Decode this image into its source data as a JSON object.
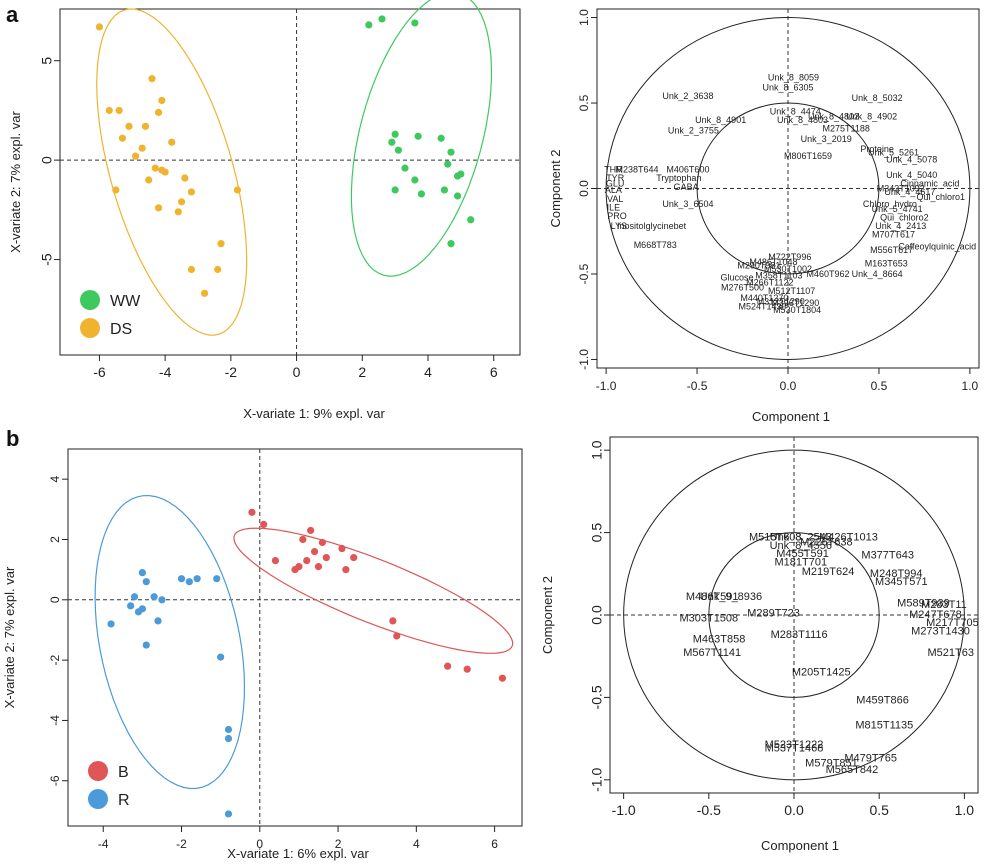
{
  "panels": {
    "a": "a",
    "b": "b"
  },
  "chart_data": [
    {
      "id": "a-scores",
      "type": "scatter",
      "title": "",
      "xlabel": "X-variate 1: 9% expl. var",
      "ylabel": "X-variate 2: 7% expl. var",
      "xlim": [
        -7.2,
        6.8
      ],
      "ylim": [
        -9.8,
        7.6
      ],
      "xticks": [
        "-6",
        "-4",
        "-2",
        "0",
        "2",
        "4",
        "6"
      ],
      "xtick_values": [
        -6,
        -4,
        -2,
        0,
        2,
        4,
        6
      ],
      "yticks": [
        "-5",
        "0",
        "5"
      ],
      "ytick_values": [
        -5,
        0,
        5
      ],
      "legend_placement": "bottom-left",
      "grid": false,
      "series": [
        {
          "name": "WW",
          "color": "#3ec95f",
          "ellipse": {
            "cx": 3.8,
            "cy": 1.3,
            "rx": 1.9,
            "ry": 7.2,
            "angle_deg": -8
          },
          "points": [
            [
              2.2,
              6.8
            ],
            [
              2.6,
              7.1
            ],
            [
              3.6,
              6.9
            ],
            [
              3.0,
              1.3
            ],
            [
              2.9,
              0.9
            ],
            [
              3.1,
              0.5
            ],
            [
              3.7,
              1.2
            ],
            [
              4.4,
              1.1
            ],
            [
              4.7,
              0.4
            ],
            [
              3.3,
              -0.4
            ],
            [
              3.6,
              -1.0
            ],
            [
              3.8,
              -1.7
            ],
            [
              3.0,
              -1.5
            ],
            [
              4.6,
              -0.2
            ],
            [
              4.9,
              -0.8
            ],
            [
              5.0,
              -0.7
            ],
            [
              4.5,
              -1.5
            ],
            [
              4.9,
              -1.8
            ],
            [
              5.3,
              -3.0
            ],
            [
              4.7,
              -4.2
            ]
          ]
        },
        {
          "name": "DS",
          "color": "#f0b32e",
          "ellipse": {
            "cx": -3.8,
            "cy": -0.6,
            "rx": 1.9,
            "ry": 8.3,
            "angle_deg": 9
          },
          "points": [
            [
              -6.0,
              6.7
            ],
            [
              -4.4,
              4.1
            ],
            [
              -4.1,
              3.0
            ],
            [
              -5.7,
              2.5
            ],
            [
              -5.4,
              2.5
            ],
            [
              -4.2,
              2.4
            ],
            [
              -5.1,
              1.7
            ],
            [
              -4.6,
              1.7
            ],
            [
              -5.3,
              1.1
            ],
            [
              -4.7,
              0.6
            ],
            [
              -3.8,
              0.9
            ],
            [
              -4.9,
              0.2
            ],
            [
              -4.3,
              -0.4
            ],
            [
              -4.1,
              -0.5
            ],
            [
              -4.0,
              -0.6
            ],
            [
              -3.4,
              -0.9
            ],
            [
              -4.5,
              -1.0
            ],
            [
              -5.5,
              -1.5
            ],
            [
              -3.2,
              -1.6
            ],
            [
              -3.5,
              -2.1
            ],
            [
              -1.8,
              -1.5
            ],
            [
              -4.2,
              -2.4
            ],
            [
              -3.6,
              -2.6
            ],
            [
              -2.3,
              -4.2
            ],
            [
              -3.2,
              -5.5
            ],
            [
              -2.4,
              -5.5
            ],
            [
              -2.8,
              -6.7
            ]
          ]
        }
      ]
    },
    {
      "id": "a-loadings",
      "type": "scatter",
      "title": "",
      "xlabel": "Component 1",
      "ylabel": "Component 2",
      "xlim": [
        -1.05,
        1.05
      ],
      "ylim": [
        -1.05,
        1.05
      ],
      "xticks": [
        "-1.0",
        "-0.5",
        "0.0",
        "0.5",
        "1.0"
      ],
      "xtick_values": [
        -1,
        -0.5,
        0,
        0.5,
        1
      ],
      "yticks": [
        "-1.0",
        "-0.5",
        "0.0",
        "0.5",
        "1.0"
      ],
      "ytick_values": [
        -1,
        -0.5,
        0,
        0.5,
        1
      ],
      "circles": [
        1.0,
        0.5
      ],
      "labels": [
        {
          "t": "Unk_8_8059",
          "x": 0.03,
          "y": 0.65
        },
        {
          "t": "Unk_8_6305",
          "x": 0.0,
          "y": 0.59
        },
        {
          "t": "Unk_2_3638",
          "x": -0.55,
          "y": 0.54
        },
        {
          "t": "Unk_8_5032",
          "x": 0.49,
          "y": 0.53
        },
        {
          "t": "Unk_8_4474",
          "x": 0.04,
          "y": 0.45
        },
        {
          "t": "Unk_8_4802",
          "x": 0.25,
          "y": 0.42
        },
        {
          "t": "Unk_8_4902",
          "x": 0.46,
          "y": 0.42
        },
        {
          "t": "Unk_8_4901",
          "x": -0.37,
          "y": 0.4
        },
        {
          "t": "Unk_8_4803",
          "x": 0.08,
          "y": 0.4
        },
        {
          "t": "M275T1188",
          "x": 0.32,
          "y": 0.35
        },
        {
          "t": "Unk_2_3755",
          "x": -0.52,
          "y": 0.34
        },
        {
          "t": "Unk_3_2019",
          "x": 0.21,
          "y": 0.29
        },
        {
          "t": "M806T1659",
          "x": 0.11,
          "y": 0.19
        },
        {
          "t": "Proteine",
          "x": 0.49,
          "y": 0.23
        },
        {
          "t": "Unk_5_5261",
          "x": 0.58,
          "y": 0.21
        },
        {
          "t": "Unk_4_5078",
          "x": 0.68,
          "y": 0.17
        },
        {
          "t": "M238T644",
          "x": -0.83,
          "y": 0.11
        },
        {
          "t": "M406T600",
          "x": -0.55,
          "y": 0.11
        },
        {
          "t": "THR",
          "x": -0.96,
          "y": 0.11
        },
        {
          "t": "TYR",
          "x": -0.95,
          "y": 0.06
        },
        {
          "t": "Tryptophan",
          "x": -0.6,
          "y": 0.06
        },
        {
          "t": "GABA",
          "x": -0.56,
          "y": 0.01
        },
        {
          "t": "GLU",
          "x": -0.95,
          "y": 0.03
        },
        {
          "t": "ALA",
          "x": -0.96,
          "y": -0.01
        },
        {
          "t": "VAL",
          "x": -0.95,
          "y": -0.06
        },
        {
          "t": "ILE",
          "x": -0.96,
          "y": -0.11
        },
        {
          "t": "Unk_3_6504",
          "x": -0.55,
          "y": -0.09
        },
        {
          "t": "PRO",
          "x": -0.94,
          "y": -0.16
        },
        {
          "t": "LYS",
          "x": -0.93,
          "y": -0.22
        },
        {
          "t": "Inositolglycinebet",
          "x": -0.75,
          "y": -0.22
        },
        {
          "t": "Unk_4_5040",
          "x": 0.68,
          "y": 0.08
        },
        {
          "t": "Cinnamic_acid",
          "x": 0.78,
          "y": 0.03
        },
        {
          "t": "M343T1092",
          "x": 0.62,
          "y": 0.0
        },
        {
          "t": "Unk_4_4617",
          "x": 0.67,
          "y": -0.02
        },
        {
          "t": "Qui_chloro1",
          "x": 0.84,
          "y": -0.05
        },
        {
          "t": "Chloro_hydro",
          "x": 0.56,
          "y": -0.09
        },
        {
          "t": "Unk_5_4741",
          "x": 0.6,
          "y": -0.12
        },
        {
          "t": "Qui_chloro2",
          "x": 0.64,
          "y": -0.17
        },
        {
          "t": "Unk_4_2413",
          "x": 0.62,
          "y": -0.22
        },
        {
          "t": "M707T617",
          "x": 0.58,
          "y": -0.27
        },
        {
          "t": "M668T783",
          "x": -0.73,
          "y": -0.33
        },
        {
          "t": "Caffeoylquinic_acid",
          "x": 0.82,
          "y": -0.34
        },
        {
          "t": "M556T617",
          "x": 0.57,
          "y": -0.36
        },
        {
          "t": "M163T653",
          "x": 0.54,
          "y": -0.44
        },
        {
          "t": "Unk_4_8664",
          "x": 0.49,
          "y": -0.5
        },
        {
          "t": "M722T996",
          "x": 0.01,
          "y": -0.4
        },
        {
          "t": "M486T1048",
          "x": -0.08,
          "y": -0.43
        },
        {
          "t": "M290T981",
          "x": -0.16,
          "y": -0.45
        },
        {
          "t": "M530T1002",
          "x": 0.0,
          "y": -0.47
        },
        {
          "t": "M460T962",
          "x": 0.22,
          "y": -0.5
        },
        {
          "t": "M358T1103",
          "x": -0.05,
          "y": -0.51
        },
        {
          "t": "Glucose",
          "x": -0.28,
          "y": -0.52
        },
        {
          "t": "M266T1122",
          "x": -0.1,
          "y": -0.55
        },
        {
          "t": "M276T500",
          "x": -0.25,
          "y": -0.58
        },
        {
          "t": "M512T1107",
          "x": 0.02,
          "y": -0.6
        },
        {
          "t": "M440T1270",
          "x": -0.13,
          "y": -0.64
        },
        {
          "t": "M312T1290",
          "x": -0.04,
          "y": -0.66
        },
        {
          "t": "M396T1290",
          "x": 0.04,
          "y": -0.67
        },
        {
          "t": "M524T1430",
          "x": -0.14,
          "y": -0.69
        },
        {
          "t": "M530T1804",
          "x": 0.05,
          "y": -0.71
        }
      ]
    },
    {
      "id": "b-scores",
      "type": "scatter",
      "title": "",
      "xlabel": "X-variate 1: 6% expl. var",
      "ylabel": "X-variate 2: 7% expl. var",
      "xlim": [
        -4.9,
        6.7
      ],
      "ylim": [
        -7.5,
        5.0
      ],
      "xticks": [
        "-4",
        "-2",
        "0",
        "2",
        "4",
        "6"
      ],
      "xtick_values": [
        -4,
        -2,
        0,
        2,
        4,
        6
      ],
      "yticks": [
        "-6",
        "-4",
        "-2",
        "0",
        "2",
        "4"
      ],
      "ytick_values": [
        -6,
        -4,
        -2,
        0,
        2,
        4
      ],
      "legend_placement": "bottom-left",
      "grid": false,
      "series": [
        {
          "name": "B",
          "color": "#e05555",
          "ellipse": {
            "cx": 2.9,
            "cy": 0.3,
            "rx": 4.0,
            "ry": 1.0,
            "angle_deg": -28
          },
          "points": [
            [
              -0.2,
              2.9
            ],
            [
              0.1,
              2.5
            ],
            [
              1.3,
              2.3
            ],
            [
              1.1,
              2.0
            ],
            [
              1.6,
              1.9
            ],
            [
              2.1,
              1.7
            ],
            [
              1.4,
              1.6
            ],
            [
              1.7,
              1.4
            ],
            [
              1.2,
              1.3
            ],
            [
              2.4,
              1.4
            ],
            [
              1.5,
              1.1
            ],
            [
              0.4,
              1.3
            ],
            [
              1.0,
              1.1
            ],
            [
              0.9,
              1.0
            ],
            [
              2.2,
              1.0
            ],
            [
              3.4,
              -0.7
            ],
            [
              3.5,
              -1.2
            ],
            [
              4.8,
              -2.2
            ],
            [
              5.3,
              -2.3
            ],
            [
              6.2,
              -2.6
            ]
          ]
        },
        {
          "name": "R",
          "color": "#4b9ad9",
          "ellipse": {
            "cx": -2.3,
            "cy": -1.4,
            "rx": 4.9,
            "ry": 1.8,
            "angle_deg": -82
          },
          "points": [
            [
              -3.0,
              0.9
            ],
            [
              -2.9,
              0.6
            ],
            [
              -2.0,
              0.7
            ],
            [
              -1.6,
              0.7
            ],
            [
              -1.8,
              0.6
            ],
            [
              -1.1,
              0.7
            ],
            [
              -3.2,
              0.1
            ],
            [
              -2.7,
              0.1
            ],
            [
              -2.5,
              0.0
            ],
            [
              -3.3,
              -0.2
            ],
            [
              -3.0,
              -0.3
            ],
            [
              -3.1,
              -0.4
            ],
            [
              -2.6,
              -0.7
            ],
            [
              -3.8,
              -0.8
            ],
            [
              -2.9,
              -1.5
            ],
            [
              -1.0,
              -1.9
            ],
            [
              -0.8,
              -4.3
            ],
            [
              -0.8,
              -4.6
            ],
            [
              -0.8,
              -7.1
            ]
          ]
        }
      ]
    },
    {
      "id": "b-loadings",
      "type": "scatter",
      "title": "",
      "xlabel": "Component 1",
      "ylabel": "Component 2",
      "xlim": [
        -1.08,
        1.08
      ],
      "ylim": [
        -1.08,
        1.08
      ],
      "xticks": [
        "-1.0",
        "-0.5",
        "0.0",
        "0.5",
        "1.0"
      ],
      "xtick_values": [
        -1,
        -0.5,
        0,
        0.5,
        1
      ],
      "yticks": [
        "-1.0",
        "-0.5",
        "0.0",
        "0.5",
        "1.0"
      ],
      "ytick_values": [
        -1,
        -0.5,
        0,
        0.5,
        1
      ],
      "circles": [
        1.0,
        0.5
      ],
      "labels": [
        {
          "t": "M515T603",
          "x": -0.11,
          "y": 0.47
        },
        {
          "t": "Unk_8_2543",
          "x": 0.04,
          "y": 0.47
        },
        {
          "t": "M426T1013",
          "x": 0.32,
          "y": 0.47
        },
        {
          "t": "Unk_8_4556",
          "x": 0.04,
          "y": 0.42
        },
        {
          "t": "M226T638",
          "x": 0.19,
          "y": 0.44
        },
        {
          "t": "M455T591",
          "x": 0.05,
          "y": 0.37
        },
        {
          "t": "M377T643",
          "x": 0.55,
          "y": 0.36
        },
        {
          "t": "M181T701",
          "x": 0.04,
          "y": 0.32
        },
        {
          "t": "M219T624",
          "x": 0.2,
          "y": 0.26
        },
        {
          "t": "M248T994",
          "x": 0.6,
          "y": 0.25
        },
        {
          "t": "M345T571",
          "x": 0.63,
          "y": 0.2
        },
        {
          "t": "M486T591",
          "x": -0.48,
          "y": 0.11
        },
        {
          "t": "Unk_9_8936",
          "x": -0.37,
          "y": 0.11
        },
        {
          "t": "M589T939",
          "x": 0.76,
          "y": 0.07
        },
        {
          "t": "M283T11",
          "x": 0.88,
          "y": 0.06
        },
        {
          "t": "M289T723",
          "x": -0.12,
          "y": 0.01
        },
        {
          "t": "M247T678",
          "x": 0.83,
          "y": 0.0
        },
        {
          "t": "M303T1508",
          "x": -0.5,
          "y": -0.02
        },
        {
          "t": "M217T705",
          "x": 0.93,
          "y": -0.05
        },
        {
          "t": "M273T1430",
          "x": 0.86,
          "y": -0.1
        },
        {
          "t": "M283T1116",
          "x": 0.03,
          "y": -0.12
        },
        {
          "t": "M463T858",
          "x": -0.44,
          "y": -0.15
        },
        {
          "t": "M567T1141",
          "x": -0.48,
          "y": -0.23
        },
        {
          "t": "M521T63",
          "x": 0.92,
          "y": -0.23
        },
        {
          "t": "M205T1425",
          "x": 0.16,
          "y": -0.35
        },
        {
          "t": "M459T866",
          "x": 0.52,
          "y": -0.52
        },
        {
          "t": "M815T1135",
          "x": 0.53,
          "y": -0.67
        },
        {
          "t": "M523T1222",
          "x": 0.0,
          "y": -0.79
        },
        {
          "t": "M537T1468",
          "x": 0.0,
          "y": -0.81
        },
        {
          "t": "M479T765",
          "x": 0.45,
          "y": -0.87
        },
        {
          "t": "M579T851",
          "x": 0.22,
          "y": -0.9
        },
        {
          "t": "M565T842",
          "x": 0.34,
          "y": -0.94
        }
      ]
    }
  ]
}
